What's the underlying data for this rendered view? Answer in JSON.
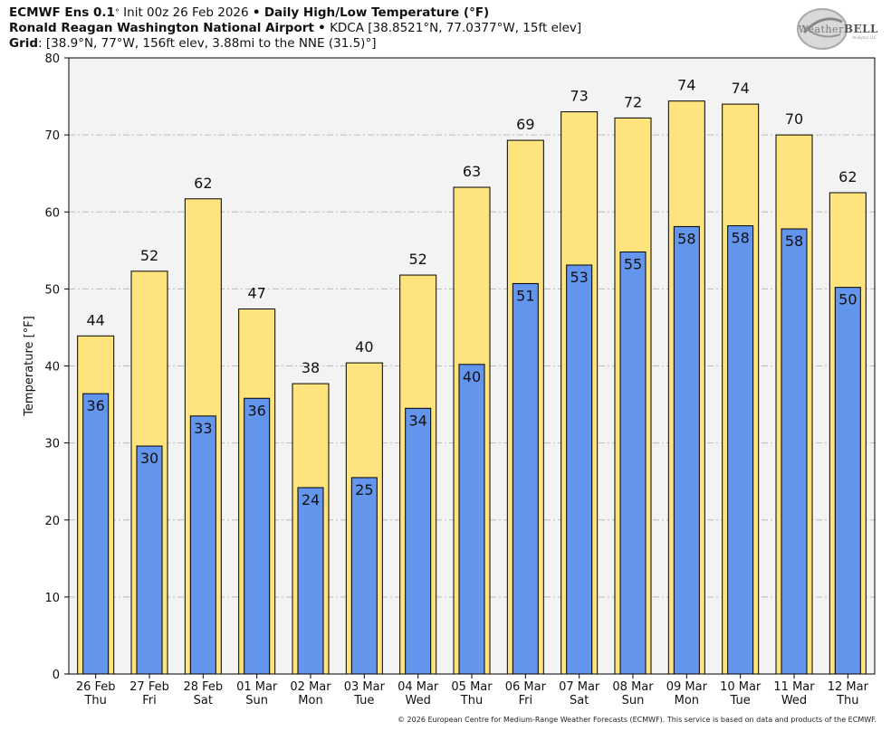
{
  "header": {
    "model": "ECMWF Ens 0.1",
    "deg": "°",
    "init": "Init 00z 26 Feb 2026",
    "bullet": "•",
    "product": "Daily High/Low Temperature (°F)",
    "station": "Ronald Reagan Washington National Airport",
    "station_info": "KDCA [38.8521°N, 77.0377°W, 15ft elev]",
    "grid_label": "Grid",
    "grid_info": ": [38.9°N, 77°W, 156ft elev, 3.88mi to the NNE (31.5)°]"
  },
  "logo": {
    "text_a": "Weather",
    "text_b": "BELL",
    "sub": "Analytics LLC"
  },
  "footer": "© 2026 European Centre for Medium-Range Weather Forecasts (ECMWF). This service is based on data and products of the ECMWF.",
  "colors": {
    "high": "#FFE37C",
    "low": "#6495ED",
    "plot_bg": "#F3F3F3",
    "grid": "#BBBBBB"
  },
  "chart_data": {
    "type": "bar",
    "title": "Daily High/Low Temperature (°F)",
    "xlabel": "",
    "ylabel": "Temperature [°F]",
    "ylim": [
      0,
      80
    ],
    "yticks": [
      0,
      10,
      20,
      30,
      40,
      50,
      60,
      70,
      80
    ],
    "categories": [
      [
        "26 Feb",
        "Thu"
      ],
      [
        "27 Feb",
        "Fri"
      ],
      [
        "28 Feb",
        "Sat"
      ],
      [
        "01 Mar",
        "Sun"
      ],
      [
        "02 Mar",
        "Mon"
      ],
      [
        "03 Mar",
        "Tue"
      ],
      [
        "04 Mar",
        "Wed"
      ],
      [
        "05 Mar",
        "Thu"
      ],
      [
        "06 Mar",
        "Fri"
      ],
      [
        "07 Mar",
        "Sat"
      ],
      [
        "08 Mar",
        "Sun"
      ],
      [
        "09 Mar",
        "Mon"
      ],
      [
        "10 Mar",
        "Tue"
      ],
      [
        "11 Mar",
        "Wed"
      ],
      [
        "12 Mar",
        "Thu"
      ]
    ],
    "series": [
      {
        "name": "High",
        "values": [
          43.9,
          52.3,
          61.7,
          47.4,
          37.7,
          40.4,
          51.8,
          63.2,
          69.3,
          73.0,
          72.2,
          74.4,
          74.0,
          70.0,
          62.5
        ],
        "labels": [
          "44",
          "52",
          "62",
          "47",
          "38",
          "40",
          "52",
          "63",
          "69",
          "73",
          "72",
          "74",
          "74",
          "70",
          "62"
        ]
      },
      {
        "name": "Low",
        "values": [
          36.4,
          29.6,
          33.5,
          35.8,
          24.2,
          25.5,
          34.5,
          40.2,
          50.7,
          53.1,
          54.8,
          58.1,
          58.2,
          57.8,
          50.2
        ],
        "labels": [
          "36",
          "30",
          "33",
          "36",
          "24",
          "25",
          "34",
          "40",
          "51",
          "53",
          "55",
          "58",
          "58",
          "58",
          "50"
        ]
      }
    ]
  }
}
